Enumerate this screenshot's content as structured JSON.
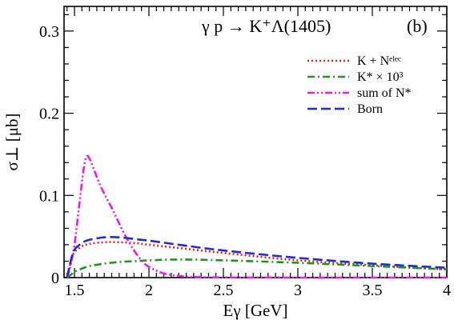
{
  "chart_data": {
    "type": "line",
    "title": "γ p → K⁺Λ(1405)",
    "panel_label": "(b)",
    "xlabel": "Eγ [GeV]",
    "ylabel": "σ⊥ [μb]",
    "xlim": [
      1.43,
      4.0
    ],
    "ylim": [
      0,
      0.33
    ],
    "x_ticks": [
      1.5,
      2,
      2.5,
      3,
      3.5,
      4
    ],
    "x_tick_labels": [
      "1.5",
      "2",
      "2.5",
      "3",
      "3.5",
      "4"
    ],
    "y_ticks": [
      0,
      0.1,
      0.2,
      0.3
    ],
    "y_tick_labels": [
      "0",
      "0.1",
      "0.2",
      "0.3"
    ],
    "grid": false,
    "legend_position": "top-right",
    "series": [
      {
        "name": "K + Nᵉˡᵉᶜ",
        "color": "#e8201e",
        "style": "dotted",
        "x": [
          1.45,
          1.48,
          1.5,
          1.55,
          1.6,
          1.7,
          1.8,
          1.9,
          2.0,
          2.2,
          2.5,
          3.0,
          3.5,
          4.0
        ],
        "y": [
          0.0,
          0.022,
          0.031,
          0.038,
          0.041,
          0.043,
          0.043,
          0.042,
          0.04,
          0.036,
          0.03,
          0.021,
          0.015,
          0.01
        ]
      },
      {
        "name": "K* × 10³",
        "color": "#1a9a1a",
        "style": "dashdot",
        "x": [
          1.45,
          1.48,
          1.5,
          1.55,
          1.6,
          1.7,
          1.8,
          1.9,
          2.0,
          2.2,
          2.5,
          3.0,
          3.5,
          4.0
        ],
        "y": [
          0.0,
          0.004,
          0.007,
          0.011,
          0.014,
          0.017,
          0.019,
          0.02,
          0.021,
          0.022,
          0.021,
          0.018,
          0.014,
          0.01
        ]
      },
      {
        "name": "sum of N*",
        "color": "#ea1aea",
        "style": "dashdotdot",
        "x": [
          1.45,
          1.47,
          1.5,
          1.53,
          1.56,
          1.58,
          1.6,
          1.63,
          1.66,
          1.7,
          1.75,
          1.8,
          1.85,
          1.9,
          1.95,
          2.0,
          2.1,
          2.2,
          2.3,
          2.5,
          3.0,
          3.5,
          4.0
        ],
        "y": [
          0.0,
          0.012,
          0.04,
          0.085,
          0.13,
          0.147,
          0.145,
          0.132,
          0.118,
          0.102,
          0.085,
          0.066,
          0.048,
          0.033,
          0.021,
          0.013,
          0.005,
          0.002,
          0.0008,
          0.0002,
          0.0,
          0.0,
          0.0
        ]
      },
      {
        "name": "Born",
        "color": "#1d2de0",
        "style": "dashed",
        "x": [
          1.45,
          1.48,
          1.5,
          1.55,
          1.6,
          1.7,
          1.8,
          1.9,
          2.0,
          2.2,
          2.5,
          3.0,
          3.5,
          4.0
        ],
        "y": [
          0.0,
          0.024,
          0.034,
          0.042,
          0.046,
          0.049,
          0.049,
          0.047,
          0.045,
          0.04,
          0.033,
          0.024,
          0.017,
          0.012
        ]
      }
    ]
  }
}
